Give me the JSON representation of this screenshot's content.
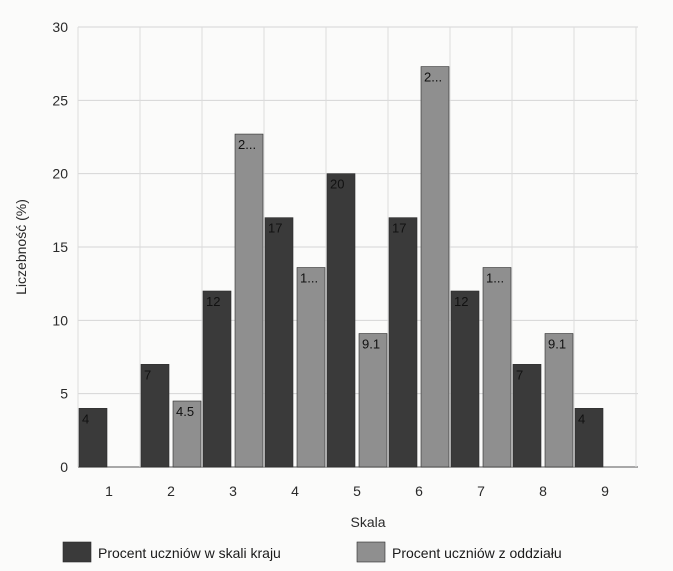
{
  "chart_data": {
    "type": "bar",
    "xlabel": "Skala",
    "ylabel": "Liczebność (%)",
    "categories": [
      "1",
      "2",
      "3",
      "4",
      "5",
      "6",
      "7",
      "8",
      "9"
    ],
    "ylim": [
      0,
      30
    ],
    "yticks": [
      "0",
      "5",
      "10",
      "15",
      "20",
      "25",
      "30"
    ],
    "grid": true,
    "legend_position": "bottom",
    "series": [
      {
        "name": "Procent uczniów w skali kraju",
        "color": "#3a3a3a",
        "values": [
          4,
          7,
          12,
          17,
          20,
          17,
          12,
          7,
          4
        ],
        "labels": [
          "4",
          "7",
          "12",
          "17",
          "20",
          "17",
          "12",
          "7",
          "4"
        ]
      },
      {
        "name": "Procent uczniów z oddziału",
        "color": "#8f8f8f",
        "values": [
          0,
          4.5,
          22.7,
          13.6,
          9.1,
          27.3,
          13.6,
          9.1,
          0
        ],
        "labels": [
          "",
          "4.5",
          "2...",
          "1...",
          "9.1",
          "2...",
          "1...",
          "9.1",
          ""
        ]
      }
    ]
  }
}
